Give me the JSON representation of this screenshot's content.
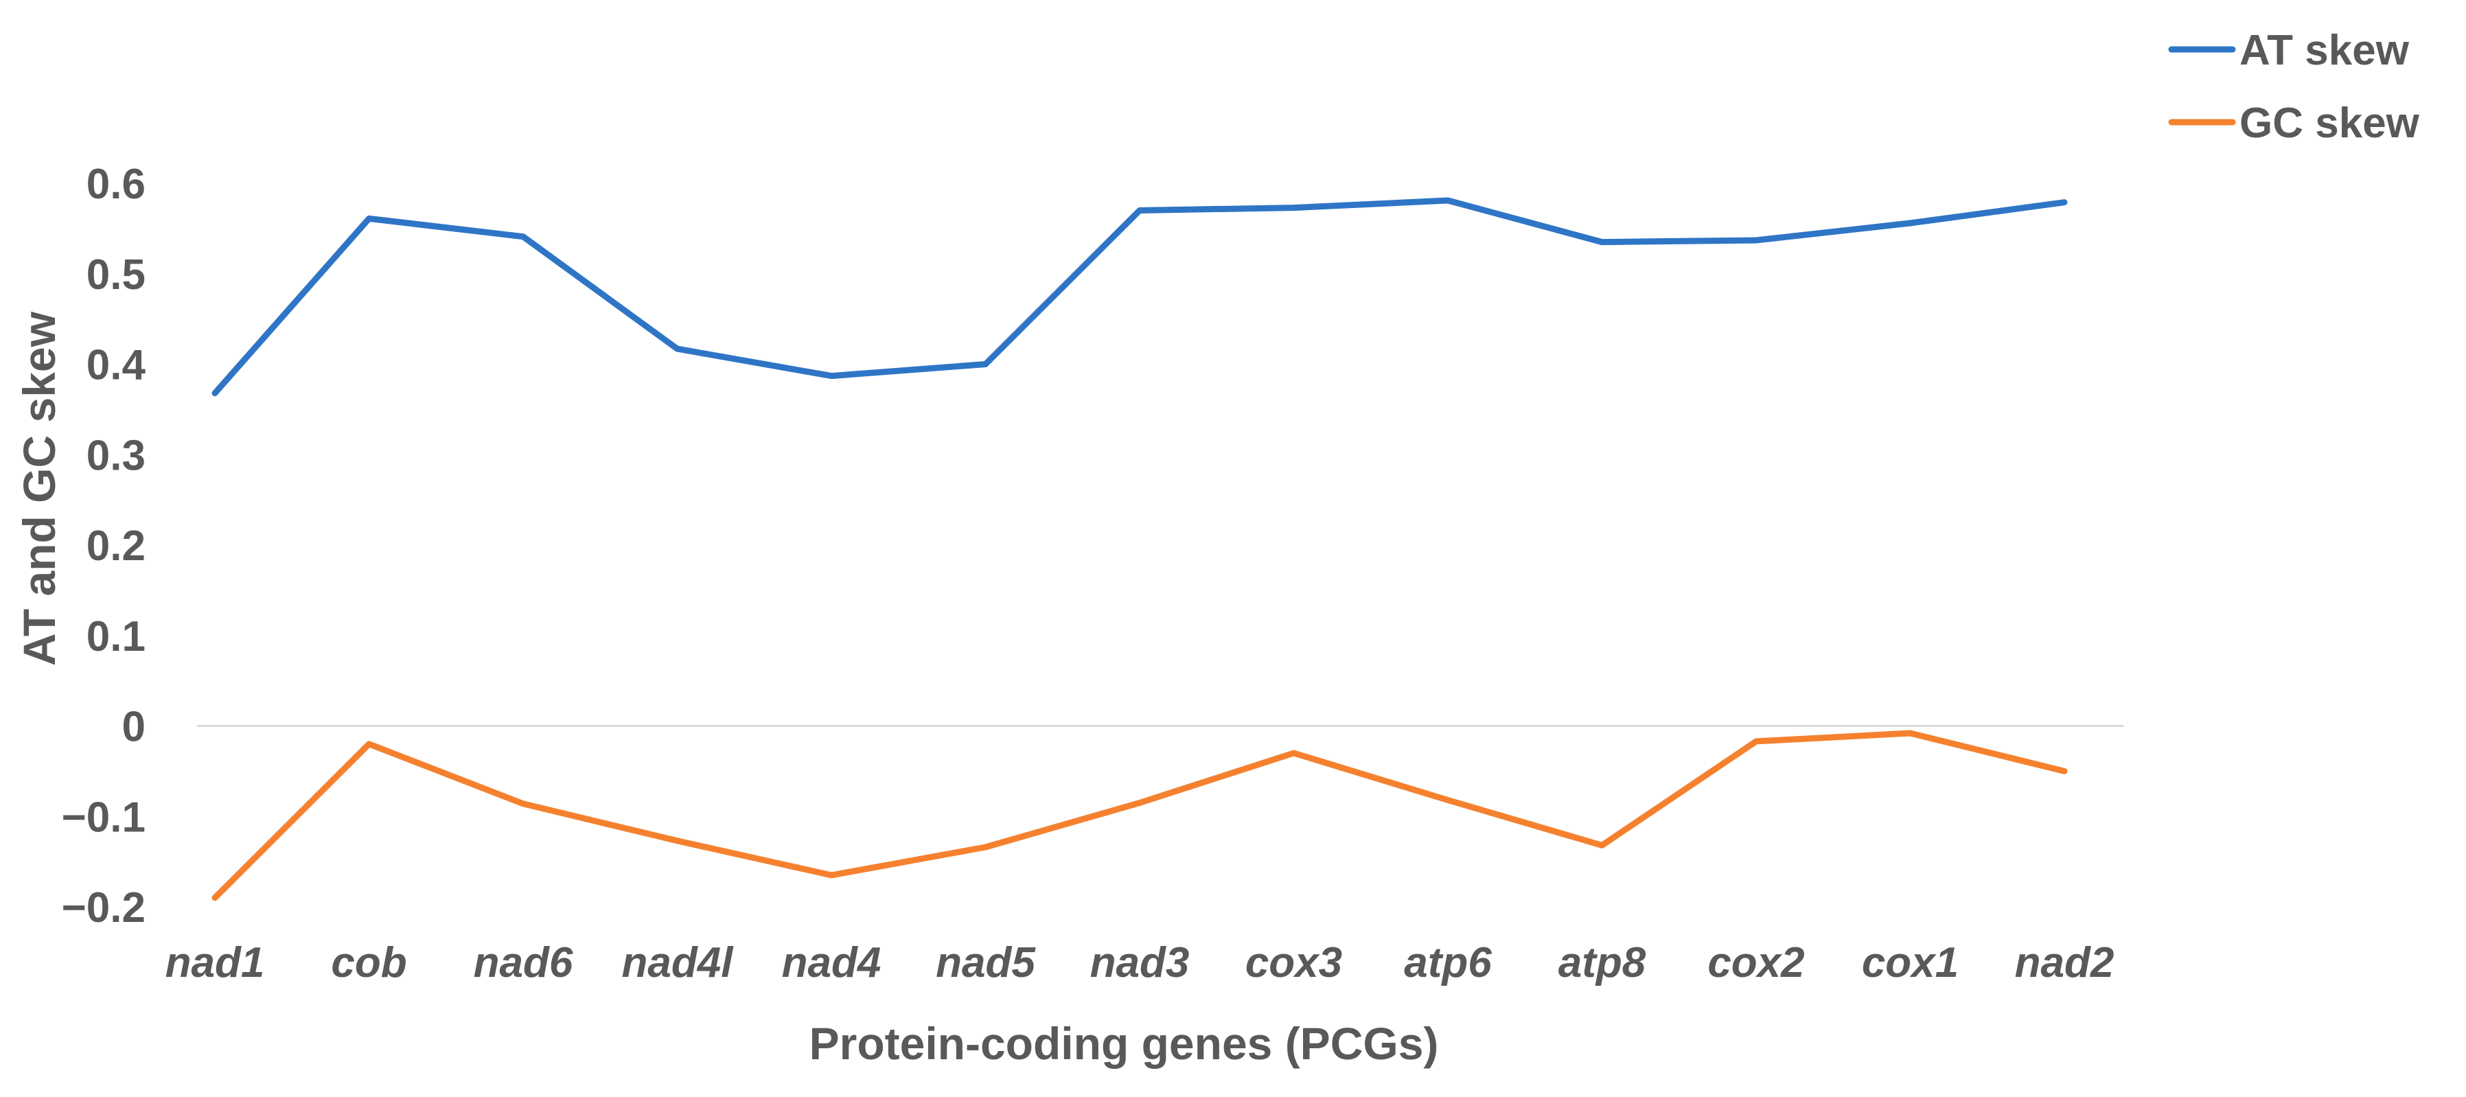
{
  "chart_data": {
    "type": "line",
    "title": "",
    "xlabel": "Protein-coding genes (PCGs)",
    "ylabel": "AT and GC skew",
    "categories": [
      "nad1",
      "cob",
      "nad6",
      "nad4l",
      "nad4",
      "nad5",
      "nad3",
      "cox3",
      "atp6",
      "atp8",
      "cox2",
      "cox1",
      "nad2"
    ],
    "ylim": [
      -0.2,
      0.6
    ],
    "yticks": [
      -0.2,
      -0.1,
      0,
      0.1,
      0.2,
      0.3,
      0.4,
      0.5,
      0.6
    ],
    "ytick_labels": [
      "−0.2",
      "−0.1",
      "0",
      "0.1",
      "0.2",
      "0.3",
      "0.4",
      "0.5",
      "0.6"
    ],
    "zero_line": true,
    "grid": false,
    "legend_position": "top-right",
    "series": [
      {
        "name": "AT skew",
        "color": "#2E75C6",
        "values": [
          0.368,
          0.561,
          0.541,
          0.417,
          0.387,
          0.4,
          0.57,
          0.573,
          0.581,
          0.535,
          0.537,
          0.556,
          0.579
        ]
      },
      {
        "name": "GC skew",
        "color": "#F5812F",
        "values": [
          -0.19,
          -0.02,
          -0.086,
          -0.127,
          -0.165,
          -0.134,
          -0.085,
          -0.03,
          -0.082,
          -0.132,
          -0.017,
          -0.008,
          -0.05
        ]
      }
    ]
  }
}
